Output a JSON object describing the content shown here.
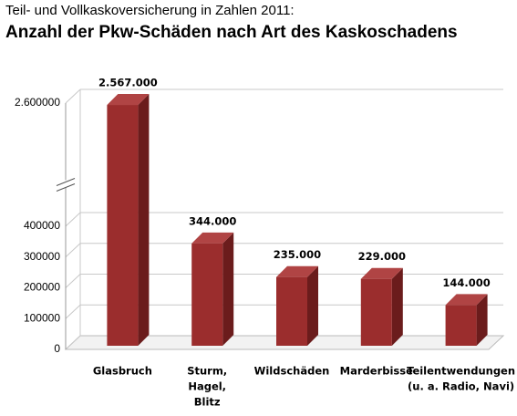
{
  "chart_data": {
    "type": "bar",
    "title": "Teil- und Vollkaskoversicherung in Zahlen 2011:",
    "subtitle": "Anzahl der Pkw-Schäden nach Art des Kaskoschadens",
    "categories": [
      [
        "Glasbruch"
      ],
      [
        "Sturm,",
        "Hagel,",
        "Blitz"
      ],
      [
        "Wildschäden"
      ],
      [
        "Marderbisse"
      ],
      [
        "Teilentwendungen",
        "(u. a. Radio, Navi)"
      ]
    ],
    "values": [
      2567000,
      344000,
      235000,
      229000,
      144000
    ],
    "value_labels": [
      "2.567.000",
      "344.000",
      "235.000",
      "229.000",
      "144.000"
    ],
    "color": "#9b2d2d",
    "ylim": [
      0,
      2600000
    ],
    "yticks": [
      0,
      100000,
      200000,
      300000,
      400000,
      {
        "value": 2600000,
        "label": "2.600000"
      }
    ],
    "axis_break": true,
    "grid": true
  }
}
